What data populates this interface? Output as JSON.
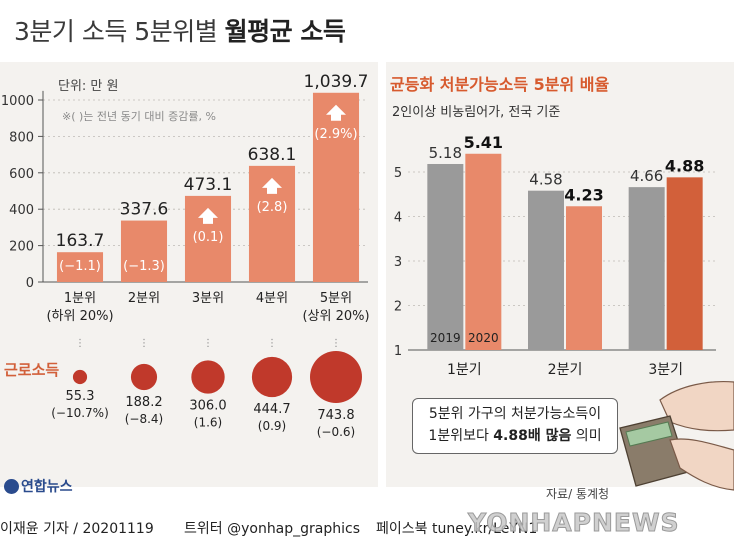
{
  "title": {
    "prefix": "3분기 소득 5분위별 ",
    "bold": "월평균 소득"
  },
  "left_chart": {
    "unit_label": "단위: 만 원",
    "note": "※( )는 전년 동기 대비 증감률, %",
    "worker_income_label": "근로소득"
  },
  "right_chart": {
    "title": "균등화 처분가능소득 5분위 배율",
    "subtitle": "2인이상 비농림어가, 전국 기준"
  },
  "callout": {
    "line1": "5분위 가구의 처분가능소득이",
    "line2_prefix": "1분위보다 ",
    "line2_bold": "4.88배 많음",
    "line2_suffix": " 의미"
  },
  "footer": {
    "logo": "연합뉴스",
    "source": "자료/ 통계청",
    "credit": "이재윤 기자 / 20201119",
    "twitter": "트위터 @yonhap_graphics",
    "facebook": "페이스북 tuney.kr/LeYN1",
    "watermark": "YONHAPNEWS"
  },
  "colors": {
    "bar_salmon": "#e8896a",
    "bar_gray": "#9a9a9a",
    "bar_dark_orange": "#d2603a",
    "circle_red": "#c0392b",
    "right_title": "#d75a2e",
    "worker_label": "#d2603a",
    "panel_bg": "#f4f2ef"
  },
  "chart_data": [
    {
      "type": "bar",
      "categories": [
        "1분위\n(하위 20%)",
        "2분위",
        "3분위",
        "4분위",
        "5분위\n(상위 20%)"
      ],
      "values": [
        163.7,
        337.6,
        473.1,
        638.1,
        1039.7
      ],
      "value_labels": [
        "163.7",
        "337.6",
        "473.1",
        "638.1",
        "1,039.7"
      ],
      "change_labels": [
        "(−1.1)",
        "(−1.3)",
        "(0.1)",
        "(2.8)",
        "(2.9%)"
      ],
      "change_direction": [
        "down",
        "down",
        "up",
        "up",
        "up"
      ],
      "yticks": [
        0,
        200,
        400,
        600,
        800,
        1000
      ],
      "ylim": [
        0,
        1100
      ],
      "worker_income": {
        "label": "근로소득",
        "values": [
          55.3,
          188.2,
          306.0,
          444.7,
          743.8
        ],
        "value_labels": [
          "55.3",
          "188.2",
          "306.0",
          "444.7",
          "743.8"
        ],
        "change_labels": [
          "(−10.7%)",
          "(−8.4)",
          "(1.6)",
          "(0.9)",
          "(−0.6)"
        ]
      }
    },
    {
      "type": "bar",
      "title": "균등화 처분가능소득 5분위 배율",
      "subtitle": "2인이상 비농림어가, 전국 기준",
      "categories": [
        "1분기",
        "2분기",
        "3분기"
      ],
      "series": [
        {
          "name": "2019",
          "values": [
            5.18,
            4.58,
            4.66
          ]
        },
        {
          "name": "2020",
          "values": [
            5.41,
            4.23,
            4.88
          ]
        }
      ],
      "value_labels_2019": [
        "5.18",
        "4.58",
        "4.66"
      ],
      "value_labels_2020": [
        "5.41",
        "4.23",
        "4.88"
      ],
      "yticks": [
        1,
        2,
        3,
        4,
        5
      ],
      "ylim": [
        1,
        5.6
      ]
    }
  ]
}
